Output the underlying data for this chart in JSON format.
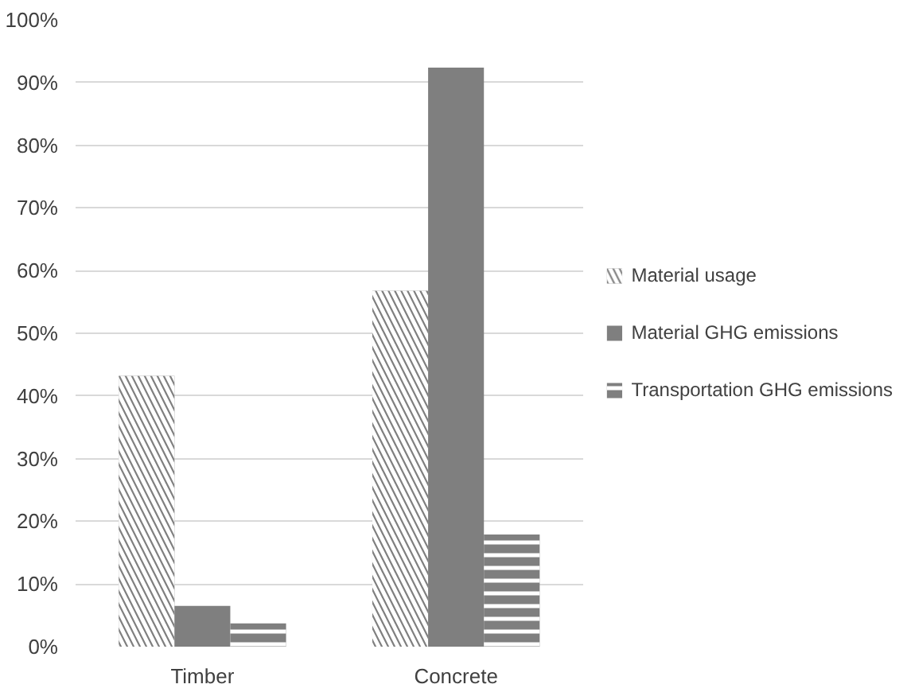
{
  "chart_data": {
    "type": "bar",
    "categories": [
      "Timber",
      "Concrete"
    ],
    "series": [
      {
        "name": "Material usage",
        "color": "#7f7f7f",
        "values": [
          43.2,
          56.8
        ]
      },
      {
        "name": "Material GHG emissions",
        "color": "#7f7f7f",
        "values": [
          6.5,
          92.4
        ]
      },
      {
        "name": "Transportation GHG emissions",
        "color": "#7f7f7f",
        "values": [
          3.7,
          17.9
        ]
      }
    ],
    "ylim": [
      0,
      100
    ],
    "yticks": [
      {
        "value": 0,
        "label": "0%"
      },
      {
        "value": 10,
        "label": "10%"
      },
      {
        "value": 20,
        "label": "20%"
      },
      {
        "value": 30,
        "label": "30%"
      },
      {
        "value": 40,
        "label": "40%"
      },
      {
        "value": 50,
        "label": "50%"
      },
      {
        "value": 60,
        "label": "60%"
      },
      {
        "value": 70,
        "label": "70%"
      },
      {
        "value": 80,
        "label": "80%"
      },
      {
        "value": 90,
        "label": "90%"
      },
      {
        "value": 100,
        "label": "100%"
      }
    ],
    "grid": "y",
    "legend": "right"
  }
}
